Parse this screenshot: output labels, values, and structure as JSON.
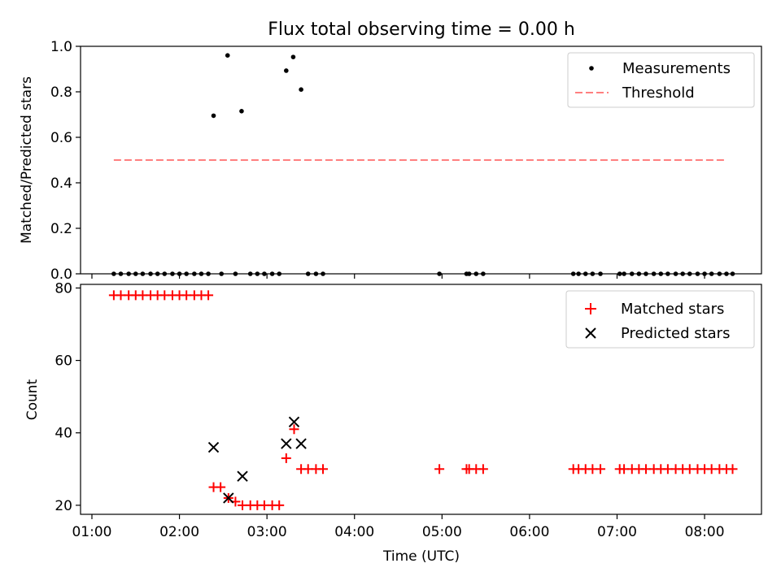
{
  "chart_data": [
    {
      "type": "scatter",
      "title": "Flux total observing time = 0.00 h",
      "xlabel": "",
      "ylabel": "Matched/Predicted stars",
      "ylim": [
        0,
        1.0
      ],
      "yticks": [
        "0.0",
        "0.2",
        "0.4",
        "0.6",
        "0.8",
        "1.0"
      ],
      "ytick_values": [
        0,
        0.2,
        0.4,
        0.6,
        0.8,
        1.0
      ],
      "xlim_hours": [
        0.87,
        8.65
      ],
      "legend_position": "top-right",
      "series": [
        {
          "name": "Measurements",
          "color": "#000000",
          "marker": "dot",
          "points": [
            [
              1.25,
              0
            ],
            [
              1.33,
              0
            ],
            [
              1.42,
              0
            ],
            [
              1.5,
              0
            ],
            [
              1.58,
              0
            ],
            [
              1.67,
              0
            ],
            [
              1.75,
              0
            ],
            [
              1.83,
              0
            ],
            [
              1.92,
              0
            ],
            [
              2.0,
              0
            ],
            [
              2.08,
              0
            ],
            [
              2.17,
              0
            ],
            [
              2.25,
              0
            ],
            [
              2.33,
              0
            ],
            [
              2.39,
              0.695
            ],
            [
              2.48,
              0
            ],
            [
              2.55,
              0.96
            ],
            [
              2.64,
              0
            ],
            [
              2.71,
              0.715
            ],
            [
              2.81,
              0
            ],
            [
              2.89,
              0
            ],
            [
              2.97,
              0
            ],
            [
              3.06,
              0
            ],
            [
              3.14,
              0
            ],
            [
              3.22,
              0.893
            ],
            [
              3.3,
              0.953
            ],
            [
              3.39,
              0.81
            ],
            [
              3.47,
              0
            ],
            [
              3.56,
              0
            ],
            [
              3.64,
              0
            ],
            [
              4.97,
              0
            ],
            [
              5.28,
              0
            ],
            [
              5.31,
              0
            ],
            [
              5.39,
              0
            ],
            [
              5.47,
              0
            ],
            [
              6.5,
              0
            ],
            [
              6.56,
              0
            ],
            [
              6.64,
              0
            ],
            [
              6.72,
              0
            ],
            [
              6.81,
              0
            ],
            [
              7.03,
              0
            ],
            [
              7.08,
              0
            ],
            [
              7.17,
              0
            ],
            [
              7.25,
              0
            ],
            [
              7.33,
              0
            ],
            [
              7.42,
              0
            ],
            [
              7.5,
              0
            ],
            [
              7.58,
              0
            ],
            [
              7.67,
              0
            ],
            [
              7.75,
              0
            ],
            [
              7.83,
              0
            ],
            [
              7.92,
              0
            ],
            [
              8.0,
              0
            ],
            [
              8.08,
              0
            ],
            [
              8.17,
              0
            ],
            [
              8.25,
              0
            ],
            [
              8.32,
              0
            ]
          ]
        },
        {
          "name": "Threshold",
          "color": "#ff7f7f",
          "style": "dashed",
          "points": [
            [
              1.25,
              0.5
            ],
            [
              8.25,
              0.5
            ]
          ]
        }
      ]
    },
    {
      "type": "scatter",
      "xlabel": "Time (UTC)",
      "ylabel": "Count",
      "ylim": [
        17.5,
        81
      ],
      "yticks": [
        "20",
        "40",
        "60",
        "80"
      ],
      "ytick_values": [
        20,
        40,
        60,
        80
      ],
      "xlim_hours": [
        0.87,
        8.65
      ],
      "xticks": [
        "01:00",
        "02:00",
        "03:00",
        "04:00",
        "05:00",
        "06:00",
        "07:00",
        "08:00"
      ],
      "xtick_values": [
        1,
        2,
        3,
        4,
        5,
        6,
        7,
        8
      ],
      "legend_position": "top-right",
      "series": [
        {
          "name": "Matched stars",
          "color": "#ff0000",
          "marker": "plus",
          "points": [
            [
              1.25,
              78
            ],
            [
              1.33,
              78
            ],
            [
              1.42,
              78
            ],
            [
              1.5,
              78
            ],
            [
              1.58,
              78
            ],
            [
              1.67,
              78
            ],
            [
              1.75,
              78
            ],
            [
              1.83,
              78
            ],
            [
              1.92,
              78
            ],
            [
              2.0,
              78
            ],
            [
              2.08,
              78
            ],
            [
              2.17,
              78
            ],
            [
              2.25,
              78
            ],
            [
              2.33,
              78
            ],
            [
              2.39,
              25
            ],
            [
              2.47,
              25
            ],
            [
              2.56,
              22
            ],
            [
              2.64,
              21
            ],
            [
              2.72,
              20
            ],
            [
              2.81,
              20
            ],
            [
              2.89,
              20
            ],
            [
              2.97,
              20
            ],
            [
              3.06,
              20
            ],
            [
              3.14,
              20
            ],
            [
              3.22,
              33
            ],
            [
              3.31,
              41
            ],
            [
              3.39,
              30
            ],
            [
              3.47,
              30
            ],
            [
              3.56,
              30
            ],
            [
              3.64,
              30
            ],
            [
              4.97,
              30
            ],
            [
              5.28,
              30
            ],
            [
              5.31,
              30
            ],
            [
              5.39,
              30
            ],
            [
              5.47,
              30
            ],
            [
              6.5,
              30
            ],
            [
              6.56,
              30
            ],
            [
              6.64,
              30
            ],
            [
              6.72,
              30
            ],
            [
              6.81,
              30
            ],
            [
              7.03,
              30
            ],
            [
              7.08,
              30
            ],
            [
              7.17,
              30
            ],
            [
              7.25,
              30
            ],
            [
              7.33,
              30
            ],
            [
              7.42,
              30
            ],
            [
              7.5,
              30
            ],
            [
              7.58,
              30
            ],
            [
              7.67,
              30
            ],
            [
              7.75,
              30
            ],
            [
              7.83,
              30
            ],
            [
              7.92,
              30
            ],
            [
              8.0,
              30
            ],
            [
              8.08,
              30
            ],
            [
              8.17,
              30
            ],
            [
              8.25,
              30
            ],
            [
              8.32,
              30
            ]
          ]
        },
        {
          "name": "Predicted stars",
          "color": "#000000",
          "marker": "x",
          "points": [
            [
              2.39,
              36
            ],
            [
              2.56,
              22
            ],
            [
              2.72,
              28
            ],
            [
              3.22,
              37
            ],
            [
              3.31,
              43
            ],
            [
              3.39,
              37
            ]
          ]
        }
      ]
    }
  ]
}
